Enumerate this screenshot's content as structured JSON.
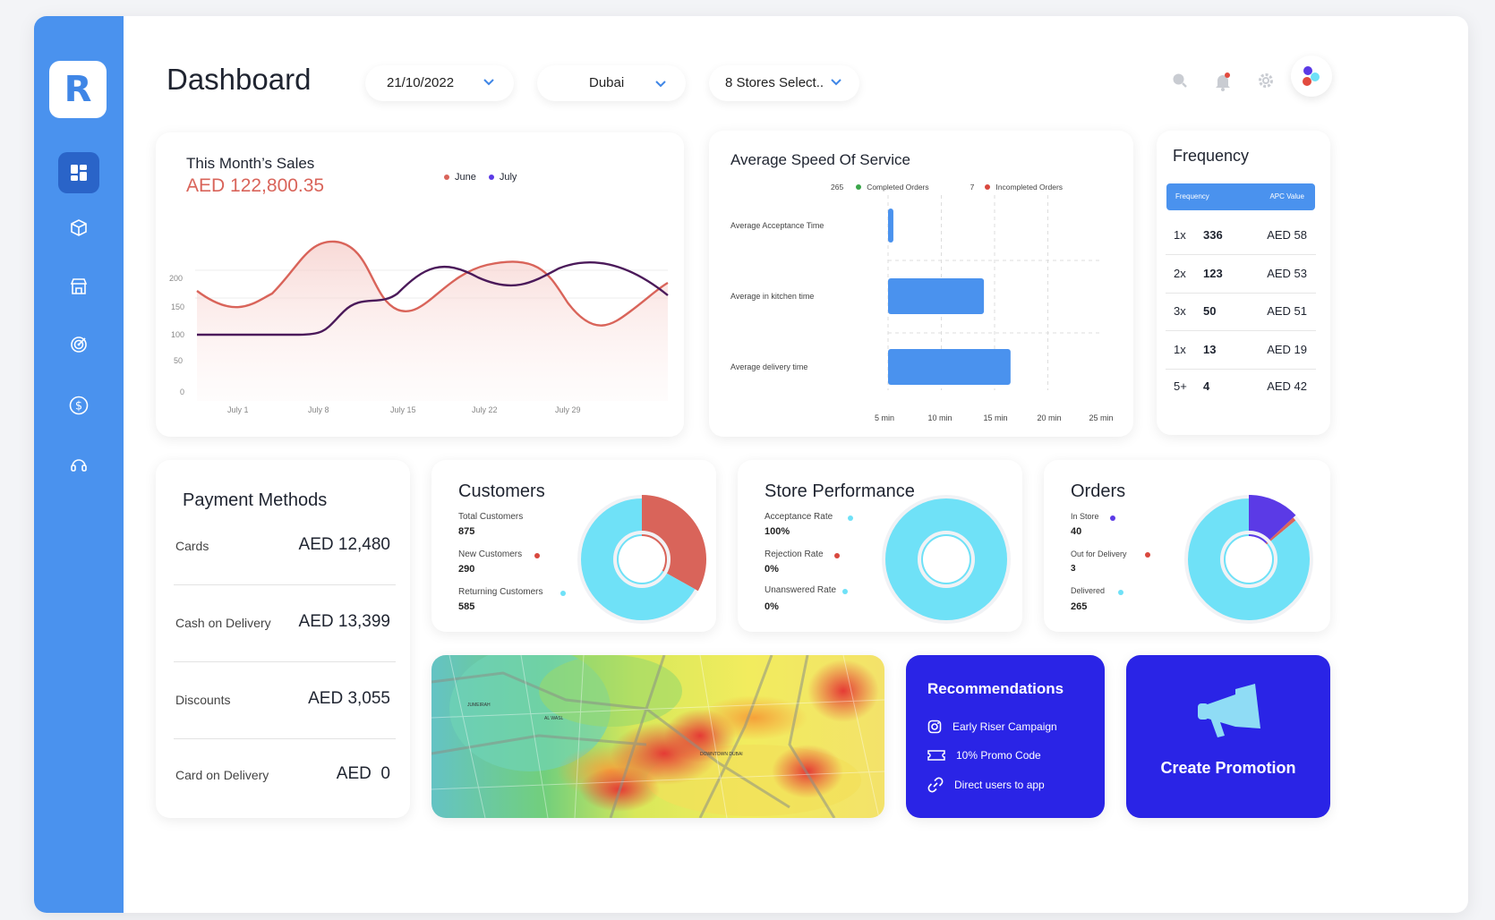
{
  "app": {
    "logo_letter": "R"
  },
  "header": {
    "title": "Dashboard",
    "date_filter": "21/10/2022",
    "city_filter": "Dubai",
    "stores_filter": "8 Stores Select.."
  },
  "colors": {
    "sidebar": "#4a92ee",
    "june": "#d9645a",
    "july": "#4b1a5a",
    "bar": "#4a92ee",
    "donut_cyan": "#6fe1f7",
    "red": "#d9645a",
    "purple": "#5b3ae6",
    "reco_bg": "#2a24e6"
  },
  "sales": {
    "title": "This Month’s Sales",
    "amount": "AED 122,800.35",
    "legend": [
      "June",
      "July"
    ],
    "y_ticks": [
      "200",
      "150",
      "100",
      "50",
      "0"
    ],
    "x_ticks": [
      "July 1",
      "July 8",
      "July 15",
      "July 22",
      "July 29"
    ]
  },
  "speed": {
    "title": "Average Speed Of Service",
    "completed_count": "265",
    "completed_label": "Completed Orders",
    "incompleted_count": "7",
    "incompleted_label": "Incompleted Orders",
    "x_ticks": [
      "5 min",
      "10 min",
      "15 min",
      "20 min",
      "25 min"
    ]
  },
  "frequency": {
    "title": "Frequency",
    "col1": "Frequency",
    "col2": "APC Value",
    "rows": [
      {
        "freq": "1x",
        "count": "336",
        "apc": "AED 58"
      },
      {
        "freq": "2x",
        "count": "123",
        "apc": "AED 53"
      },
      {
        "freq": "3x",
        "count": "50",
        "apc": "AED 51"
      },
      {
        "freq": "1x",
        "count": "13",
        "apc": "AED 19"
      },
      {
        "freq": "5+",
        "count": "4",
        "apc": "AED 42"
      }
    ]
  },
  "payments": {
    "title": "Payment Methods",
    "rows": [
      {
        "label": "Cards",
        "value": "AED 12,480"
      },
      {
        "label": "Cash on Delivery",
        "value": "AED 13,399"
      },
      {
        "label": "Discounts",
        "value": "AED 3,055"
      },
      {
        "label": "Card on Delivery",
        "value": "AED  0"
      }
    ]
  },
  "customers": {
    "title": "Customers",
    "stats": [
      {
        "label": "Total Customers",
        "value": "875"
      },
      {
        "label": "New Customers",
        "value": "290"
      },
      {
        "label": "Returning Customers",
        "value": "585"
      }
    ]
  },
  "store_performance": {
    "title": "Store Performance",
    "stats": [
      {
        "label": "Acceptance Rate",
        "value": "100%"
      },
      {
        "label": "Rejection Rate",
        "value": "0%"
      },
      {
        "label": "Unanswered Rate",
        "value": "0%"
      }
    ]
  },
  "orders": {
    "title": "Orders",
    "stats": [
      {
        "label": "In Store",
        "value": "40"
      },
      {
        "label": "Out for Delivery",
        "value": "3"
      },
      {
        "label": "Delivered",
        "value": "265"
      }
    ]
  },
  "map": {
    "labels": [
      "JUMEIRAH",
      "AL WASL",
      "DOWNTOWN DUBAI"
    ]
  },
  "recommendations": {
    "title": "Recommendations",
    "items": [
      {
        "label": "Early Riser Campaign",
        "icon": "instagram-icon"
      },
      {
        "label": "10% Promo Code",
        "icon": "ticket-icon"
      },
      {
        "label": "Direct users to app",
        "icon": "link-icon"
      }
    ]
  },
  "promotion": {
    "label": "Create Promotion",
    "icon": "megaphone-icon"
  },
  "chart_data": [
    {
      "type": "line",
      "title": "This Month’s Sales",
      "x": [
        "July 1",
        "July 8",
        "July 15",
        "July 22",
        "July 29"
      ],
      "ylim": [
        0,
        200
      ],
      "series": [
        {
          "name": "June",
          "values": [
            160,
            230,
            140,
            220,
            130
          ]
        },
        {
          "name": "July",
          "values": [
            100,
            100,
            190,
            170,
            200
          ]
        }
      ]
    },
    {
      "type": "bar",
      "title": "Average Speed Of Service",
      "categories": [
        "Average Acceptance Time",
        "Average in kitchen time",
        "Average delivery time"
      ],
      "values": [
        5.5,
        14,
        16.5
      ],
      "xlim": [
        5,
        25
      ],
      "unit": "min"
    },
    {
      "type": "pie",
      "title": "Customers",
      "categories": [
        "New Customers",
        "Returning Customers"
      ],
      "values": [
        290,
        585
      ]
    },
    {
      "type": "pie",
      "title": "Store Performance",
      "categories": [
        "Acceptance Rate",
        "Rejection Rate",
        "Unanswered Rate"
      ],
      "values": [
        100,
        0,
        0
      ]
    },
    {
      "type": "pie",
      "title": "Orders",
      "categories": [
        "In Store",
        "Out for Delivery",
        "Delivered"
      ],
      "values": [
        40,
        3,
        265
      ]
    }
  ]
}
